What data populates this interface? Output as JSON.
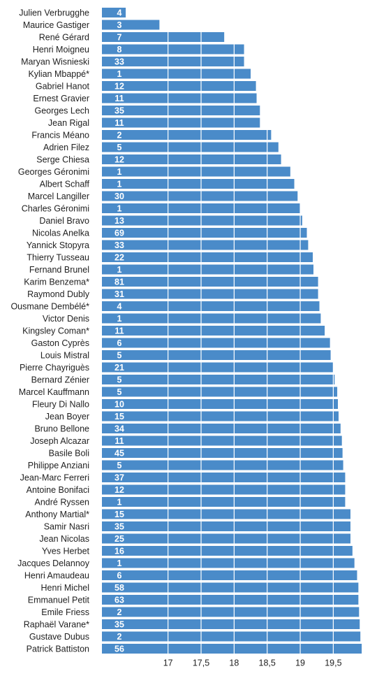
{
  "chart_data": {
    "type": "bar",
    "orientation": "horizontal",
    "bar_color": "#4a8bc9",
    "gridline_color": "#ffffff",
    "xlim": [
      16.0,
      19.95
    ],
    "x_ticks": [
      17,
      17.5,
      18,
      18.5,
      19,
      19.5
    ],
    "x_tick_labels": [
      "17",
      "17,5",
      "18",
      "18,5",
      "19",
      "19,5"
    ],
    "categories": [
      "Julien Verbrugghe",
      "Maurice Gastiger",
      "René Gérard",
      "Henri Moigneu",
      "Maryan Wisnieski",
      "Kylian Mbappé*",
      "Gabriel Hanot",
      "Ernest Gravier",
      "Georges Lech",
      "Jean Rigal",
      "Francis Méano",
      "Adrien Filez",
      "Serge Chiesa",
      "Georges Géronimi",
      "Albert Schaff",
      "Marcel Langiller",
      "Charles Géronimi",
      "Daniel Bravo",
      "Nicolas Anelka",
      "Yannick Stopyra",
      "Thierry Tusseau",
      "Fernand Brunel",
      "Karim Benzema*",
      "Raymond Dubly",
      "Ousmane Dembélé*",
      "Victor Denis",
      "Kingsley Coman*",
      "Gaston Cyprès",
      "Louis Mistral",
      "Pierre Chayriguès",
      "Bernard Zénier",
      "Marcel Kauffmann",
      "Fleury Di Nallo",
      "Jean Boyer",
      "Bruno Bellone",
      "Joseph Alcazar",
      "Basile Boli",
      "Philippe Anziani",
      "Jean-Marc Ferreri",
      "Antoine Bonifaci",
      "André Ryssen",
      "Anthony Martial*",
      "Samir Nasri",
      "Jean Nicolas",
      "Yves Herbet",
      "Jacques Delannoy",
      "Henri Amaudeau",
      "Henri Michel",
      "Emmanuel Petit",
      "Emile Friess",
      "Raphaël Varane*",
      "Gustave Dubus",
      "Patrick Battiston"
    ],
    "values": [
      16.36,
      16.87,
      17.85,
      18.15,
      18.15,
      18.25,
      18.33,
      18.34,
      18.39,
      18.39,
      18.56,
      18.67,
      18.71,
      18.85,
      18.91,
      18.96,
      19.0,
      19.03,
      19.1,
      19.12,
      19.19,
      19.2,
      19.27,
      19.27,
      19.29,
      19.31,
      19.37,
      19.45,
      19.46,
      19.5,
      19.52,
      19.56,
      19.57,
      19.58,
      19.61,
      19.63,
      19.64,
      19.65,
      19.68,
      19.68,
      19.68,
      19.76,
      19.76,
      19.76,
      19.79,
      19.82,
      19.86,
      19.88,
      19.88,
      19.89,
      19.9,
      19.91,
      19.93
    ],
    "counts": [
      "4",
      "3",
      "7",
      "8",
      "33",
      "1",
      "12",
      "11",
      "35",
      "11",
      "2",
      "5",
      "12",
      "1",
      "1",
      "30",
      "1",
      "13",
      "69",
      "33",
      "22",
      "1",
      "81",
      "31",
      "4",
      "1",
      "11",
      "6",
      "5",
      "21",
      "5",
      "5",
      "10",
      "15",
      "34",
      "11",
      "45",
      "5",
      "37",
      "12",
      "1",
      "15",
      "35",
      "25",
      "16",
      "1",
      "6",
      "58",
      "63",
      "2",
      "35",
      "2",
      "56"
    ]
  }
}
